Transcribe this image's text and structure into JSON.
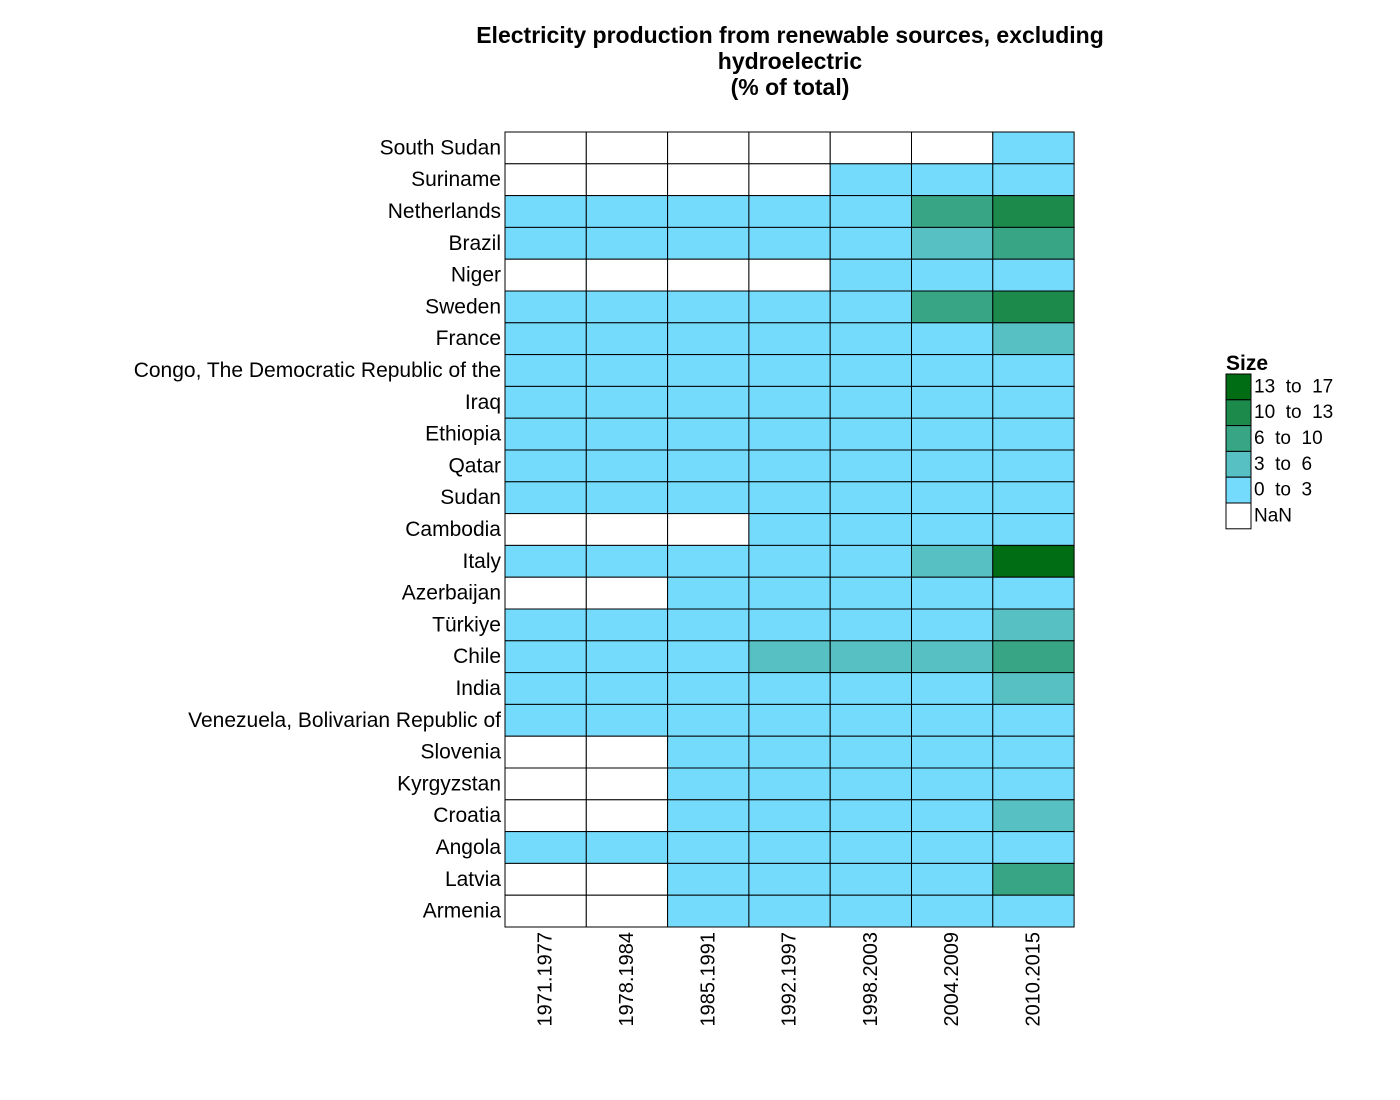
{
  "chart_data": {
    "type": "heatmap",
    "title_lines": [
      "Electricity production from renewable sources, excluding",
      "hydroelectric",
      "(% of total)"
    ],
    "columns": [
      "1971.1977",
      "1978.1984",
      "1985.1991",
      "1992.1997",
      "1998.2003",
      "2004.2009",
      "2010.2015"
    ],
    "rows": [
      "South Sudan",
      "Suriname",
      "Netherlands",
      "Brazil",
      "Niger",
      "Sweden",
      "France",
      "Congo, The Democratic Republic of the",
      "Iraq",
      "Ethiopia",
      "Qatar",
      "Sudan",
      "Cambodia",
      "Italy",
      "Azerbaijan",
      "Türkiye",
      "Chile",
      "India",
      "Venezuela, Bolivarian Republic of",
      "Slovenia",
      "Kyrgyzstan",
      "Croatia",
      "Angola",
      "Latvia",
      "Armenia"
    ],
    "bins": [
      {
        "label": "13  to  17",
        "color": "#006d14"
      },
      {
        "label": "10  to  13",
        "color": "#1b8a4b"
      },
      {
        "label": "6  to  10",
        "color": "#38a585"
      },
      {
        "label": "3  to  6",
        "color": "#56c0c3"
      },
      {
        "label": "0  to  3",
        "color": "#75dbfd"
      },
      {
        "label": "NaN",
        "color": "#ffffff"
      }
    ],
    "cells_bin_index": [
      [
        5,
        5,
        5,
        5,
        5,
        5,
        4
      ],
      [
        5,
        5,
        5,
        5,
        4,
        4,
        4
      ],
      [
        4,
        4,
        4,
        4,
        4,
        2,
        1
      ],
      [
        4,
        4,
        4,
        4,
        4,
        3,
        2
      ],
      [
        5,
        5,
        5,
        5,
        4,
        4,
        4
      ],
      [
        4,
        4,
        4,
        4,
        4,
        2,
        1
      ],
      [
        4,
        4,
        4,
        4,
        4,
        4,
        3
      ],
      [
        4,
        4,
        4,
        4,
        4,
        4,
        4
      ],
      [
        4,
        4,
        4,
        4,
        4,
        4,
        4
      ],
      [
        4,
        4,
        4,
        4,
        4,
        4,
        4
      ],
      [
        4,
        4,
        4,
        4,
        4,
        4,
        4
      ],
      [
        4,
        4,
        4,
        4,
        4,
        4,
        4
      ],
      [
        5,
        5,
        5,
        4,
        4,
        4,
        4
      ],
      [
        4,
        4,
        4,
        4,
        4,
        3,
        0
      ],
      [
        5,
        5,
        4,
        4,
        4,
        4,
        4
      ],
      [
        4,
        4,
        4,
        4,
        4,
        4,
        3
      ],
      [
        4,
        4,
        4,
        3,
        3,
        3,
        2
      ],
      [
        4,
        4,
        4,
        4,
        4,
        4,
        3
      ],
      [
        4,
        4,
        4,
        4,
        4,
        4,
        4
      ],
      [
        5,
        5,
        4,
        4,
        4,
        4,
        4
      ],
      [
        5,
        5,
        4,
        4,
        4,
        4,
        4
      ],
      [
        5,
        5,
        4,
        4,
        4,
        4,
        3
      ],
      [
        4,
        4,
        4,
        4,
        4,
        4,
        4
      ],
      [
        5,
        5,
        4,
        4,
        4,
        4,
        2
      ],
      [
        5,
        5,
        4,
        4,
        4,
        4,
        4
      ]
    ],
    "legend": {
      "title": "Size",
      "placement": "right"
    }
  }
}
